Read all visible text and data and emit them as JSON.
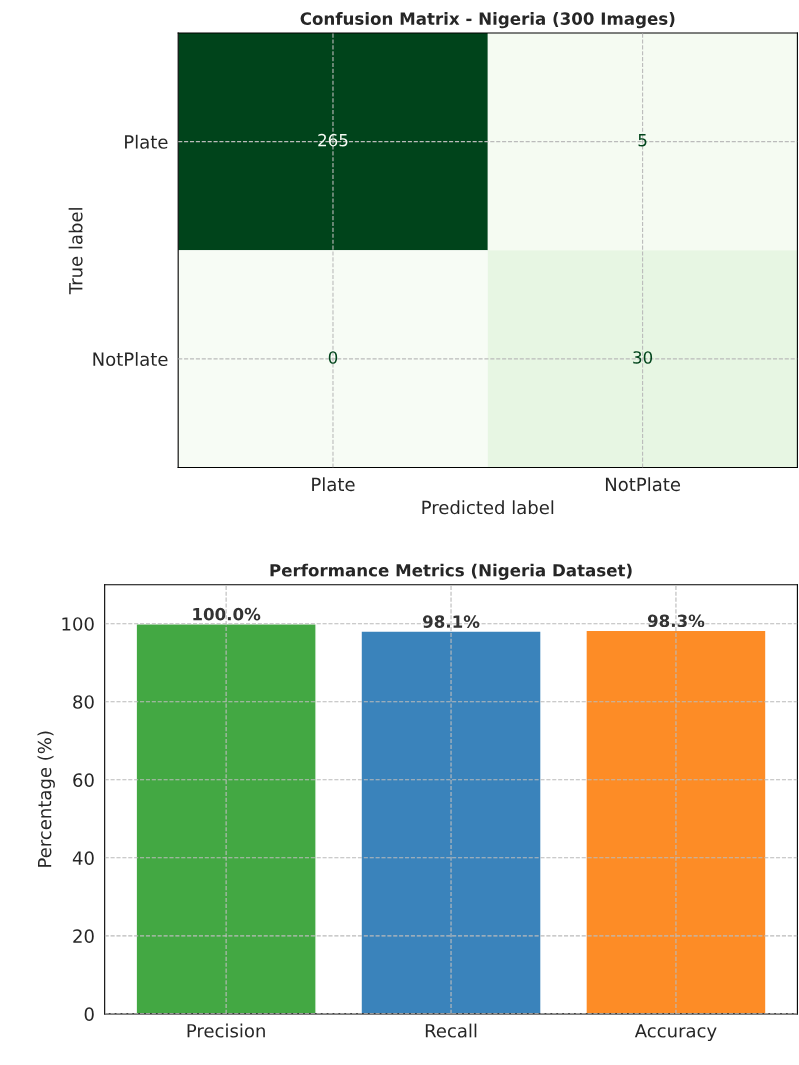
{
  "chart_data": [
    {
      "type": "heatmap",
      "title": "Confusion Matrix - Nigeria (300 Images)",
      "xlabel": "Predicted label",
      "ylabel": "True label",
      "categories": [
        "Plate",
        "NotPlate"
      ],
      "y_categories": [
        "Plate",
        "NotPlate"
      ],
      "cells": [
        [
          265,
          5
        ],
        [
          0,
          30
        ]
      ],
      "data_labels": true,
      "grid": true
    },
    {
      "type": "bar",
      "title": "Performance Metrics (Nigeria Dataset)",
      "ylabel": "Percentage (%)",
      "categories": [
        "Precision",
        "Recall",
        "Accuracy"
      ],
      "values": [
        100.0,
        98.1,
        98.3
      ],
      "colors": [
        "#43a843",
        "#3a83bb",
        "#fd8c26"
      ],
      "value_labels": [
        "100.0%",
        "98.1%",
        "98.3%"
      ],
      "ylim": [
        0,
        110
      ],
      "yticks": [
        0,
        20,
        40,
        60,
        80,
        100
      ],
      "grid": true
    }
  ]
}
